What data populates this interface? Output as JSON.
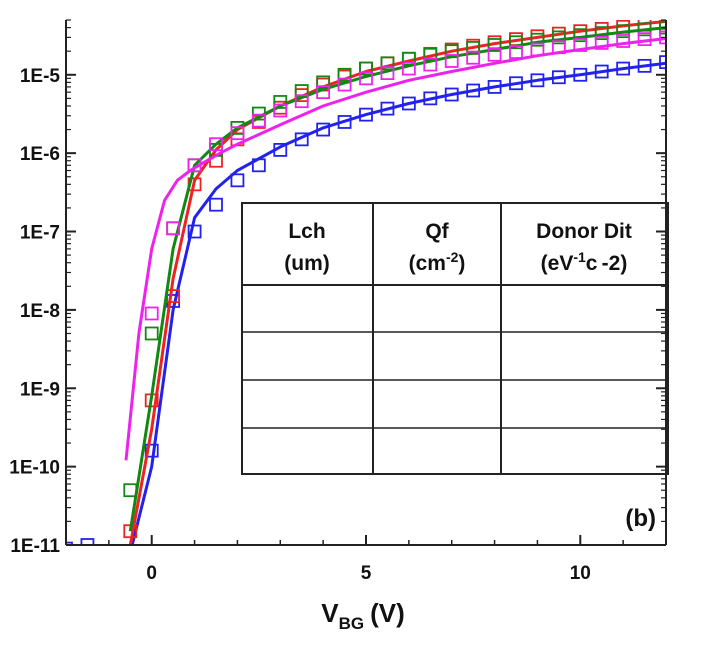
{
  "chart_data": {
    "type": "scatter",
    "xlabel_main": "V",
    "xlabel_sub": "BG",
    "xlabel_unit": "(V)",
    "ylabel": "",
    "y_scale": "log",
    "xlim": [
      -2,
      12
    ],
    "ylim": [
      1e-11,
      5e-05
    ],
    "x_ticks": [
      0,
      5,
      10
    ],
    "x_tick_labels": [
      "0",
      "5",
      "10"
    ],
    "y_ticks": [
      1e-11,
      1e-10,
      1e-09,
      1e-08,
      1e-07,
      1e-06,
      1e-05
    ],
    "y_tick_labels": [
      "1E-11",
      "1E-10",
      "1E-9",
      "1E-8",
      "1E-7",
      "1E-6",
      "1E-5"
    ],
    "panel_label": "(b)",
    "grid": false,
    "table": {
      "headers": [
        {
          "line1": "Lch",
          "line2_main": "(um)",
          "line2_sup": "",
          "line2_end": ""
        },
        {
          "line1": "Qf",
          "line2_main": "(cm",
          "line2_sup": "-2",
          "line2_end": ")"
        },
        {
          "line1": "Donor Dit",
          "line2_main": "(eV",
          "line2_sup": "-1",
          "line2_end": "c -2)"
        }
      ],
      "rows": 4
    },
    "series": [
      {
        "color": "#2222ee",
        "markers_x": [
          -2,
          -1.5,
          -0.5,
          0,
          0.5,
          1,
          1.5,
          2,
          2.5,
          3,
          3.5,
          4,
          4.5,
          5,
          5.5,
          6,
          6.5,
          7,
          7.5,
          8,
          8.5,
          9,
          9.5,
          10,
          10.5,
          11,
          11.5,
          12
        ],
        "markers_y": [
          9e-12,
          1e-11,
          3e-12,
          1.6e-10,
          1.3e-08,
          1e-07,
          2.2e-07,
          4.5e-07,
          7e-07,
          1.1e-06,
          1.5e-06,
          2e-06,
          2.5e-06,
          3.1e-06,
          3.7e-06,
          4.3e-06,
          5e-06,
          5.6e-06,
          6.3e-06,
          7e-06,
          7.8e-06,
          8.5e-06,
          9.3e-06,
          1e-05,
          1.1e-05,
          1.2e-05,
          1.3e-05,
          1.45e-05
        ],
        "line_x": [
          -0.5,
          0,
          0.5,
          1,
          1.5,
          2,
          3,
          4,
          5,
          6,
          7,
          8,
          9,
          10,
          11,
          12
        ],
        "line_y": [
          8e-12,
          1e-10,
          1e-08,
          1.5e-07,
          3.5e-07,
          6e-07,
          1.2e-06,
          2.1e-06,
          3.1e-06,
          4.3e-06,
          5.6e-06,
          7e-06,
          8.5e-06,
          1e-05,
          1.2e-05,
          1.4e-05
        ]
      },
      {
        "color": "#ee2222",
        "markers_x": [
          -0.5,
          0,
          0.5,
          1,
          1.5,
          2,
          2.5,
          3,
          3.5,
          4,
          4.5,
          5,
          5.5,
          6,
          6.5,
          7,
          7.5,
          8,
          8.5,
          9,
          9.5,
          10,
          10.5,
          11,
          11.5,
          12
        ],
        "markers_y": [
          1.5e-11,
          7e-10,
          1.5e-08,
          4e-07,
          8e-07,
          1.5e-06,
          2.5e-06,
          3.8e-06,
          5.5e-06,
          7.5e-06,
          9.5e-06,
          1.2e-05,
          1.4e-05,
          1.6e-05,
          1.85e-05,
          2.1e-05,
          2.35e-05,
          2.6e-05,
          2.85e-05,
          3.1e-05,
          3.35e-05,
          3.6e-05,
          3.85e-05,
          4.1e-05,
          4.35e-05,
          4.6e-05
        ],
        "line_x": [
          -0.5,
          0,
          0.5,
          1,
          1.5,
          2,
          3,
          4,
          5,
          6,
          7,
          8,
          9,
          10,
          11,
          12
        ],
        "line_y": [
          1e-11,
          3e-10,
          2.5e-08,
          4.5e-07,
          1.1e-06,
          2e-06,
          4e-06,
          7e-06,
          1.1e-05,
          1.5e-05,
          2e-05,
          2.5e-05,
          3e-05,
          3.6e-05,
          4.2e-05,
          4.8e-05
        ]
      },
      {
        "color": "#118811",
        "markers_x": [
          -0.5,
          0,
          0.5,
          1,
          1.5,
          2,
          2.5,
          3,
          3.5,
          4,
          4.5,
          5,
          5.5,
          6,
          6.5,
          7,
          7.5,
          8,
          8.5,
          9,
          9.5,
          10,
          10.5,
          11,
          11.5,
          12
        ],
        "markers_y": [
          5e-11,
          5e-09,
          1.1e-07,
          7e-07,
          1.1e-06,
          2.1e-06,
          3.2e-06,
          4.5e-06,
          6.2e-06,
          8e-06,
          1e-05,
          1.2e-05,
          1.4e-05,
          1.6e-05,
          1.8e-05,
          2e-05,
          2.2e-05,
          2.4e-05,
          2.6e-05,
          2.8e-05,
          3e-05,
          3.2e-05,
          3.4e-05,
          3.6e-05,
          3.8e-05,
          4e-05
        ],
        "line_x": [
          -0.5,
          0,
          0.5,
          1,
          1.5,
          2,
          3,
          4,
          5,
          6,
          7,
          8,
          9,
          10,
          11,
          12
        ],
        "line_y": [
          1.5e-11,
          8e-10,
          6e-08,
          7e-07,
          1.3e-06,
          2.1e-06,
          4e-06,
          6.5e-06,
          9.5e-06,
          1.3e-05,
          1.7e-05,
          2.1e-05,
          2.6e-05,
          3e-05,
          3.5e-05,
          4e-05
        ]
      },
      {
        "color": "#ee22ee",
        "markers_x": [
          0,
          0.5,
          1,
          1.5,
          2,
          2.5,
          3,
          3.5,
          4,
          4.5,
          5,
          5.5,
          6,
          6.5,
          7,
          7.5,
          8,
          8.5,
          9,
          9.5,
          10,
          10.5,
          11,
          11.5,
          12
        ],
        "markers_y": [
          9e-09,
          1.1e-07,
          7e-07,
          1.3e-06,
          1.8e-06,
          2.6e-06,
          3.5e-06,
          4.6e-06,
          6e-06,
          7.5e-06,
          9e-06,
          1.05e-05,
          1.2e-05,
          1.35e-05,
          1.5e-05,
          1.65e-05,
          1.8e-05,
          1.95e-05,
          2.1e-05,
          2.25e-05,
          2.4e-05,
          2.55e-05,
          2.7e-05,
          2.85e-05,
          3e-05
        ],
        "line_x": [
          -0.6,
          -0.3,
          0,
          0.3,
          0.6,
          0.9,
          1.2,
          1.6,
          2,
          3,
          4,
          5,
          6,
          7,
          8,
          9,
          10,
          11,
          12
        ],
        "line_y": [
          1.2e-10,
          5e-09,
          6e-08,
          2.5e-07,
          4.5e-07,
          6e-07,
          7.5e-07,
          1e-06,
          1.3e-06,
          2.3e-06,
          4e-06,
          6e-06,
          8.5e-06,
          1.1e-05,
          1.4e-05,
          1.75e-05,
          2.1e-05,
          2.5e-05,
          2.9e-05
        ]
      }
    ]
  }
}
